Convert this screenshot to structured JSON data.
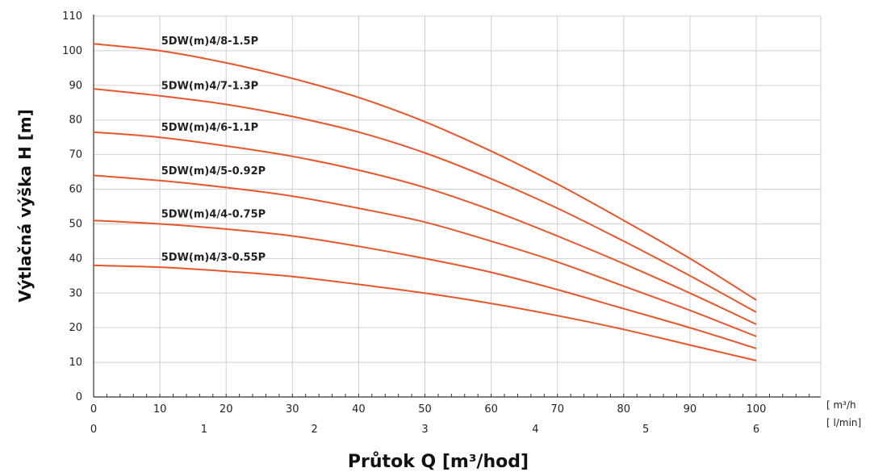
{
  "colors": {
    "curve": "#E8562A",
    "grid": "#cfcfcf",
    "axis": "#333333",
    "text": "#222222"
  },
  "chart_data": {
    "type": "line",
    "ylabel": "Výtlačná výška H [m]",
    "xlabel": "Průtok Q [m³/hod]",
    "x_unit_top": "[ m³/h",
    "x_unit_bottom": "[ l/min]",
    "ylim": [
      0,
      110
    ],
    "xlim_lmin": [
      0,
      110
    ],
    "y_ticks": [
      0,
      10,
      20,
      30,
      40,
      50,
      60,
      70,
      80,
      90,
      100,
      110
    ],
    "x_ticks_top": [
      0,
      10,
      20,
      30,
      40,
      50,
      60,
      70,
      80,
      90,
      100
    ],
    "x_ticks_bottom": [
      0,
      1,
      2,
      3,
      4,
      5,
      6
    ],
    "grid": true,
    "x": [
      0,
      10,
      20,
      30,
      40,
      50,
      60,
      70,
      80,
      90,
      100
    ],
    "series": [
      {
        "name": "5DW(m)4/8-1.5P",
        "values": [
          102,
          100,
          96.5,
          92,
          86.5,
          79.5,
          71,
          61.5,
          51,
          40,
          28
        ]
      },
      {
        "name": "5DW(m)4/7-1.3P",
        "values": [
          89,
          87,
          84.5,
          81,
          76.5,
          70.5,
          63,
          54.5,
          45,
          35,
          24.5
        ]
      },
      {
        "name": "5DW(m)4/6-1.1P",
        "values": [
          76.5,
          75,
          72.5,
          69.5,
          65.5,
          60.5,
          54,
          46.5,
          38.5,
          30,
          21
        ]
      },
      {
        "name": "5DW(m)4/5-0.92P",
        "values": [
          64,
          62.5,
          60.5,
          58,
          54.5,
          50.5,
          45,
          39,
          32,
          25,
          17.5
        ]
      },
      {
        "name": "5DW(m)4/4-0.75P",
        "values": [
          51,
          50,
          48.5,
          46.5,
          43.5,
          40,
          36,
          31,
          25.5,
          20,
          14
        ]
      },
      {
        "name": "5DW(m)4/3-0.55P",
        "values": [
          38,
          37.5,
          36.3,
          34.8,
          32.5,
          30,
          27,
          23.5,
          19.5,
          15,
          10.5
        ]
      }
    ]
  }
}
